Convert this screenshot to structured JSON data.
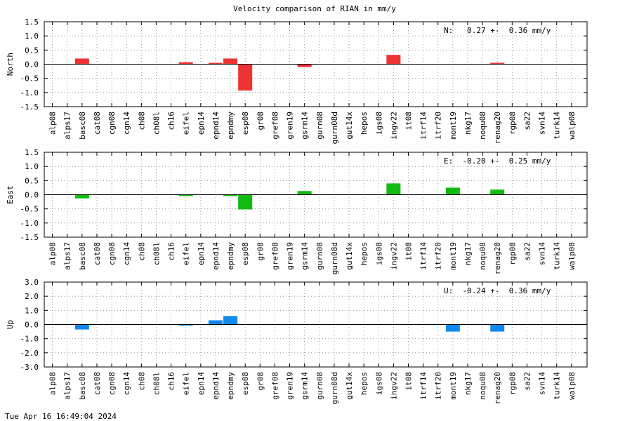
{
  "chart_data": {
    "type": "bar",
    "title": "Velocity comparison of RIAN in mm/y",
    "categories": [
      "alp08",
      "alps17",
      "basc08",
      "cat08",
      "cgn08",
      "cgn14",
      "ch08",
      "ch08l",
      "ch16",
      "eifel",
      "epn14",
      "epnd14",
      "epndmy",
      "esp08",
      "gr08",
      "gref08",
      "gren19",
      "gsrm14",
      "gurn08",
      "gurn08d",
      "gut14x",
      "hepos",
      "igs08",
      "ingv22",
      "it08",
      "itrf14",
      "itrf20",
      "mont19",
      "nkg17",
      "noqu08",
      "renag20",
      "rgp08",
      "sa22",
      "svn14",
      "turk14",
      "walp08"
    ],
    "panels": [
      {
        "ylabel": "North",
        "ylim": [
          -1.5,
          1.5
        ],
        "yticks": [
          "1.5",
          "1.0",
          "0.5",
          "0.0",
          "-0.5",
          "-1.0",
          "-1.5"
        ],
        "ytick_values": [
          1.5,
          1.0,
          0.5,
          0.0,
          -0.5,
          -1.0,
          -1.5
        ],
        "color": "#ee3333",
        "annotation": "N:   0.27 +-  0.36 mm/y",
        "values": [
          null,
          null,
          0.2,
          null,
          null,
          null,
          null,
          null,
          null,
          0.07,
          null,
          0.05,
          0.2,
          -0.93,
          null,
          null,
          null,
          -0.1,
          null,
          null,
          null,
          null,
          null,
          0.33,
          null,
          null,
          null,
          null,
          null,
          null,
          0.05,
          null,
          null,
          null,
          null,
          null
        ]
      },
      {
        "ylabel": "East",
        "ylim": [
          -1.5,
          1.5
        ],
        "yticks": [
          "1.5",
          "1.0",
          "0.5",
          "0.0",
          "-0.5",
          "-1.0",
          "-1.5"
        ],
        "ytick_values": [
          1.5,
          1.0,
          0.5,
          0.0,
          -0.5,
          -1.0,
          -1.5
        ],
        "color": "#11bb11",
        "annotation": "E:  -0.20 +-  0.25 mm/y",
        "values": [
          null,
          null,
          -0.13,
          null,
          null,
          null,
          null,
          null,
          null,
          -0.05,
          null,
          null,
          -0.05,
          -0.52,
          null,
          null,
          null,
          0.13,
          null,
          null,
          null,
          null,
          null,
          0.4,
          null,
          null,
          null,
          0.25,
          null,
          null,
          0.18,
          null,
          null,
          null,
          null,
          null
        ]
      },
      {
        "ylabel": "Up",
        "ylim": [
          -3.0,
          3.0
        ],
        "yticks": [
          "3.0",
          "2.0",
          "1.0",
          "0.0",
          "-1.0",
          "-2.0",
          "-3.0"
        ],
        "ytick_values": [
          3.0,
          2.0,
          1.0,
          0.0,
          -1.0,
          -2.0,
          -3.0
        ],
        "color": "#1188ee",
        "annotation": "U:  -0.24 +-  0.36 mm/y",
        "values": [
          null,
          null,
          -0.35,
          null,
          null,
          null,
          null,
          null,
          null,
          -0.08,
          null,
          0.3,
          0.6,
          null,
          null,
          null,
          null,
          null,
          null,
          null,
          null,
          null,
          null,
          null,
          null,
          null,
          null,
          -0.5,
          null,
          null,
          -0.5,
          null,
          null,
          null,
          null,
          null
        ]
      }
    ],
    "grid": true
  },
  "footer": {
    "timestamp": "Tue Apr 16 16:49:04 2024"
  }
}
